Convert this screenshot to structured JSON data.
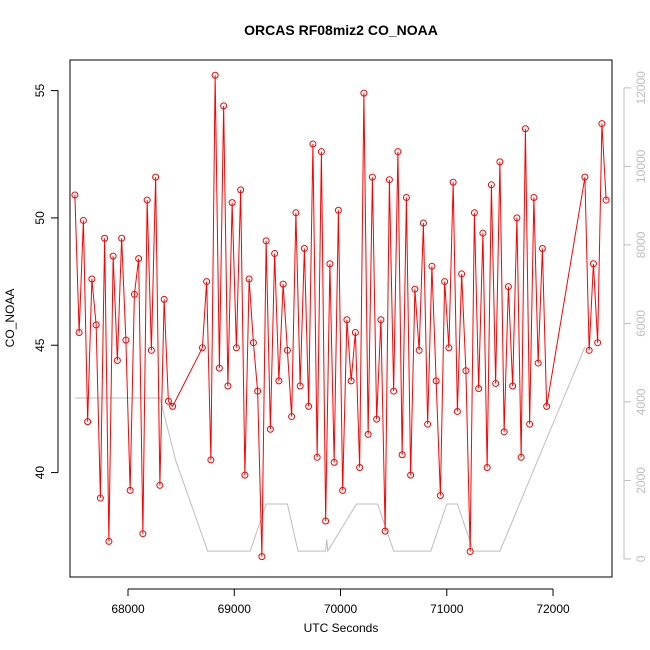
{
  "chart_data": {
    "type": "line",
    "title": "ORCAS RF08miz2 CO_NOAA",
    "xlabel": "UTC Seconds",
    "ylabel": "CO_NOAA",
    "xlim": [
      67454,
      72555
    ],
    "ylim": [
      35.9,
      56.2
    ],
    "y2lim": [
      -460,
      12710
    ],
    "xticks": [
      68000,
      69000,
      70000,
      71000,
      72000
    ],
    "yticks": [
      40,
      45,
      50,
      55
    ],
    "y2ticks": [
      0,
      2000,
      4000,
      6000,
      8000,
      10000,
      12000
    ],
    "series": [
      {
        "color": "#ff0000",
        "markers": true,
        "x": [
          67500,
          67540,
          67580,
          67620,
          67660,
          67700,
          67740,
          67780,
          67820,
          67860,
          67900,
          67940,
          67980,
          68020,
          68060,
          68100,
          68140,
          68180,
          68220,
          68260,
          68300,
          68340,
          68380,
          68420,
          68700,
          68740,
          68780,
          68820,
          68860,
          68900,
          68940,
          68980,
          69020,
          69060,
          69100,
          69140,
          69180,
          69220,
          69260,
          69300,
          69340,
          69380,
          69420,
          69460,
          69500,
          69540,
          69580,
          69620,
          69660,
          69700,
          69740,
          69780,
          69820,
          69860,
          69900,
          69940,
          69980,
          70020,
          70060,
          70100,
          70140,
          70180,
          70220,
          70260,
          70300,
          70340,
          70380,
          70420,
          70460,
          70500,
          70540,
          70580,
          70620,
          70660,
          70700,
          70740,
          70780,
          70820,
          70860,
          70900,
          70940,
          70980,
          71020,
          71060,
          71100,
          71140,
          71180,
          71220,
          71260,
          71300,
          71340,
          71380,
          71420,
          71460,
          71500,
          71540,
          71580,
          71620,
          71660,
          71700,
          71740,
          71780,
          71820,
          71860,
          71900,
          71940,
          72300,
          72340,
          72380,
          72420,
          72460,
          72500
        ],
        "values": [
          50.9,
          45.5,
          49.9,
          42,
          47.6,
          45.8,
          39,
          49.2,
          37.3,
          48.5,
          44.4,
          49.2,
          45.2,
          39.3,
          47,
          48.4,
          37.6,
          50.7,
          44.8,
          51.6,
          39.5,
          46.8,
          42.8,
          42.6,
          44.9,
          47.5,
          40.5,
          55.6,
          44.1,
          54.4,
          43.4,
          50.6,
          44.9,
          51.1,
          39.9,
          47.6,
          45.1,
          43.2,
          36.7,
          49.1,
          41.7,
          48.6,
          43.6,
          47.4,
          44.8,
          42.2,
          50.2,
          43.4,
          48.8,
          42.6,
          52.9,
          40.6,
          52.6,
          38.1,
          48.2,
          40.4,
          50.3,
          39.3,
          46,
          43.6,
          45.5,
          40.2,
          54.9,
          41.5,
          51.6,
          42.1,
          46,
          37.7,
          51.5,
          43.2,
          52.6,
          40.7,
          50.8,
          39.9,
          47.2,
          44.8,
          49.8,
          41.9,
          48.1,
          43.6,
          39.1,
          47.5,
          44.9,
          51.4,
          42.4,
          47.8,
          44,
          36.9,
          50.2,
          43.3,
          49.4,
          40.2,
          51.3,
          43.5,
          52.2,
          41.6,
          47.3,
          43.4,
          50,
          40.6,
          53.5,
          41.9,
          50.8,
          44.3,
          48.8,
          42.6,
          51.6,
          44.8,
          48.2,
          45.1,
          53.7,
          50.7
        ]
      },
      {
        "color": "#bebebe",
        "axis": "y2",
        "markers": false,
        "x": [
          67500,
          68300,
          68450,
          68750,
          69150,
          69300,
          69500,
          69600,
          69850,
          69860,
          69870,
          69880,
          70150,
          70350,
          70500,
          70850,
          71000,
          71100,
          71250,
          71500,
          72300
        ],
        "values": [
          4100,
          4100,
          2500,
          200,
          200,
          1400,
          1400,
          200,
          200,
          200,
          500,
          200,
          1400,
          1400,
          200,
          200,
          1400,
          1400,
          200,
          200,
          5400
        ]
      }
    ]
  }
}
